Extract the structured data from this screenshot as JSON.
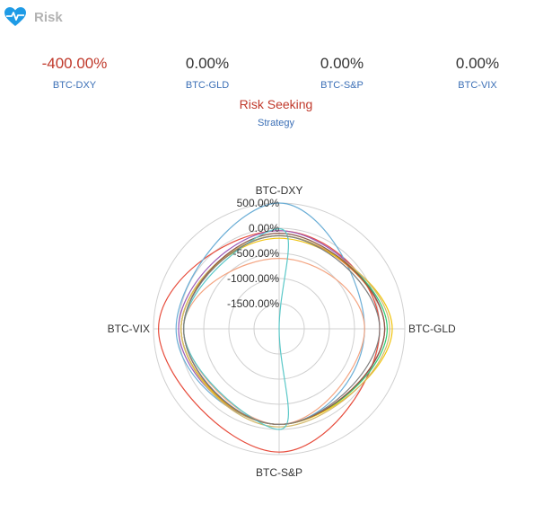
{
  "header": {
    "title": "Risk",
    "icon": "heart-pulse-icon",
    "icon_color": "#1e9be6"
  },
  "metrics": [
    {
      "value": "-400.00%",
      "label": "BTC-DXY",
      "negative": true
    },
    {
      "value": "0.00%",
      "label": "BTC-GLD",
      "negative": false
    },
    {
      "value": "0.00%",
      "label": "BTC-S&P",
      "negative": false
    },
    {
      "value": "0.00%",
      "label": "BTC-VIX",
      "negative": false
    }
  ],
  "strategy": {
    "value": "Risk Seeking",
    "label": "Strategy"
  },
  "colors": {
    "negative": "#c0392b",
    "label": "#3b6fb6",
    "grid": "#d0d0d0"
  },
  "chart_data": {
    "type": "radar",
    "axes": [
      "BTC-DXY",
      "BTC-GLD",
      "BTC-S&P",
      "BTC-VIX"
    ],
    "tick_labels": [
      "500.00%",
      "0.00%",
      "-500.00%",
      "-1000.00%",
      "-1500.00%"
    ],
    "range": [
      -2000,
      500
    ],
    "grid": true,
    "series": [
      {
        "color": "#e74c3c",
        "values": [
          -50,
          0,
          450,
          400
        ]
      },
      {
        "color": "#6baed6",
        "values": [
          500,
          -300,
          -100,
          50
        ]
      },
      {
        "color": "#9b59b6",
        "values": [
          -50,
          100,
          -100,
          0
        ]
      },
      {
        "color": "#2ecc71",
        "values": [
          -150,
          150,
          -100,
          -50
        ]
      },
      {
        "color": "#e67e22",
        "values": [
          -150,
          100,
          -100,
          -50
        ]
      },
      {
        "color": "#f1c40f",
        "values": [
          -200,
          250,
          -100,
          -50
        ]
      },
      {
        "color": "#d4b96a",
        "values": [
          -150,
          200,
          -50,
          -50
        ]
      },
      {
        "color": "#8c564b",
        "values": [
          -100,
          100,
          -100,
          -100
        ]
      },
      {
        "color": "#f4a582",
        "values": [
          -600,
          -300,
          -100,
          -100
        ]
      },
      {
        "color": "#5ac8c8",
        "values": [
          -10,
          -2000,
          0,
          -100
        ]
      },
      {
        "color": "#7f7f7f",
        "values": [
          -150,
          0,
          -100,
          -100
        ]
      }
    ]
  }
}
